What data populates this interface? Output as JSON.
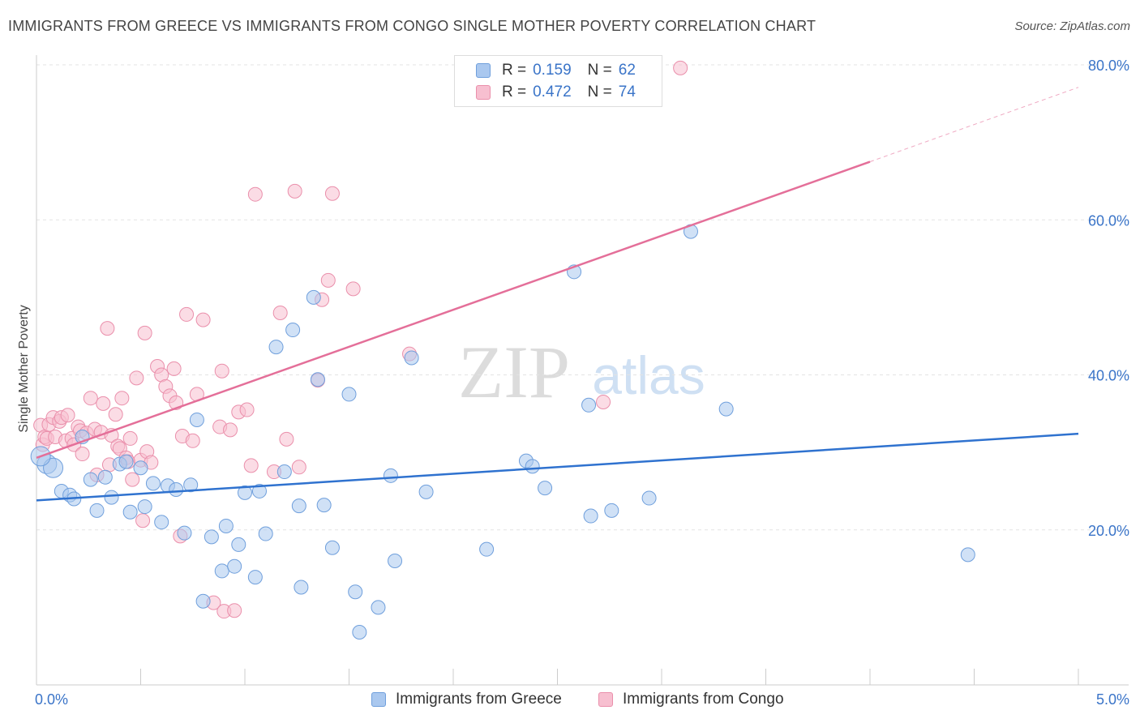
{
  "title": "IMMIGRANTS FROM GREECE VS IMMIGRANTS FROM CONGO SINGLE MOTHER POVERTY CORRELATION CHART",
  "source": "Source: ZipAtlas.com",
  "watermark": {
    "zip": "ZIP",
    "atlas": "atlas"
  },
  "legend": {
    "greece": {
      "r_label": "R =",
      "r_value": "0.159",
      "n_label": "N =",
      "n_value": "62"
    },
    "congo": {
      "r_label": "R =",
      "r_value": "0.472",
      "n_label": "N =",
      "n_value": "74"
    }
  },
  "colors": {
    "greece_fill": "#aac8ef",
    "greece_stroke": "#6f9fdc",
    "greece_line": "#2f72cf",
    "congo_fill": "#f7bfd0",
    "congo_stroke": "#ea8fab",
    "congo_line": "#e46f99",
    "tick_text": "#3a74c8"
  },
  "chart_data": {
    "type": "scatter",
    "title": "IMMIGRANTS FROM GREECE VS IMMIGRANTS FROM CONGO SINGLE MOTHER POVERTY CORRELATION CHART",
    "xlabel": "",
    "ylabel": "Single Mother Poverty",
    "xlim": [
      0,
      5
    ],
    "ylim": [
      0,
      80
    ],
    "x_tick_labels": [
      "0.0%",
      "5.0%"
    ],
    "y_ticks": [
      20,
      40,
      60,
      80
    ],
    "y_tick_labels": [
      "20.0%",
      "40.0%",
      "60.0%",
      "80.0%"
    ],
    "grid": "horizontal dashed",
    "series": [
      {
        "name": "Immigrants from Greece",
        "r": 0.159,
        "n": 62,
        "trend": {
          "x0": 0.0,
          "y0": 23.8,
          "x1": 5.0,
          "y1": 32.4
        },
        "points": [
          [
            0.05,
            28.5
          ],
          [
            0.08,
            28.0
          ],
          [
            0.02,
            29.5
          ],
          [
            0.12,
            25.0
          ],
          [
            0.16,
            24.5
          ],
          [
            0.18,
            24.0
          ],
          [
            0.22,
            32.0
          ],
          [
            0.26,
            26.5
          ],
          [
            0.29,
            22.5
          ],
          [
            0.33,
            26.8
          ],
          [
            0.36,
            24.2
          ],
          [
            0.4,
            28.5
          ],
          [
            0.43,
            28.8
          ],
          [
            0.45,
            22.3
          ],
          [
            0.5,
            28.0
          ],
          [
            0.52,
            23.0
          ],
          [
            0.56,
            26.0
          ],
          [
            0.6,
            21.0
          ],
          [
            0.63,
            25.7
          ],
          [
            0.67,
            25.2
          ],
          [
            0.71,
            19.6
          ],
          [
            0.74,
            25.8
          ],
          [
            0.77,
            34.2
          ],
          [
            0.8,
            10.8
          ],
          [
            0.84,
            19.1
          ],
          [
            0.89,
            14.7
          ],
          [
            0.91,
            20.5
          ],
          [
            0.95,
            15.3
          ],
          [
            0.97,
            18.1
          ],
          [
            1.0,
            24.8
          ],
          [
            1.05,
            13.9
          ],
          [
            1.07,
            25.0
          ],
          [
            1.1,
            19.5
          ],
          [
            1.15,
            43.6
          ],
          [
            1.19,
            27.5
          ],
          [
            1.23,
            45.8
          ],
          [
            1.26,
            23.1
          ],
          [
            1.27,
            12.6
          ],
          [
            1.33,
            50.0
          ],
          [
            1.35,
            39.4
          ],
          [
            1.38,
            23.2
          ],
          [
            1.42,
            17.7
          ],
          [
            1.5,
            37.5
          ],
          [
            1.53,
            12.0
          ],
          [
            1.55,
            6.8
          ],
          [
            1.64,
            10.0
          ],
          [
            1.7,
            27.0
          ],
          [
            1.72,
            16.0
          ],
          [
            1.8,
            42.2
          ],
          [
            1.87,
            24.9
          ],
          [
            2.16,
            17.5
          ],
          [
            2.35,
            28.9
          ],
          [
            2.38,
            28.2
          ],
          [
            2.44,
            25.4
          ],
          [
            2.58,
            53.3
          ],
          [
            2.65,
            36.1
          ],
          [
            2.66,
            21.8
          ],
          [
            2.76,
            22.5
          ],
          [
            2.94,
            24.1
          ],
          [
            3.14,
            58.5
          ],
          [
            3.31,
            35.6
          ],
          [
            4.47,
            16.8
          ]
        ]
      },
      {
        "name": "Immigrants from Congo",
        "r": 0.472,
        "n": 74,
        "trend": {
          "x0": 0.0,
          "y0": 29.3,
          "x1": 4.0,
          "y1": 67.5
        },
        "trend_extension": {
          "x1": 5.0,
          "y1": 77.1
        },
        "points": [
          [
            0.02,
            33.5
          ],
          [
            0.03,
            31.0
          ],
          [
            0.04,
            32.0
          ],
          [
            0.05,
            31.8
          ],
          [
            0.06,
            33.6
          ],
          [
            0.08,
            34.5
          ],
          [
            0.09,
            32.0
          ],
          [
            0.11,
            34.0
          ],
          [
            0.12,
            34.5
          ],
          [
            0.14,
            31.5
          ],
          [
            0.15,
            34.8
          ],
          [
            0.17,
            31.8
          ],
          [
            0.18,
            31.0
          ],
          [
            0.2,
            33.3
          ],
          [
            0.21,
            32.8
          ],
          [
            0.22,
            29.8
          ],
          [
            0.24,
            32.5
          ],
          [
            0.26,
            37.0
          ],
          [
            0.28,
            33.0
          ],
          [
            0.29,
            27.1
          ],
          [
            0.31,
            32.6
          ],
          [
            0.32,
            36.3
          ],
          [
            0.34,
            46.0
          ],
          [
            0.35,
            28.4
          ],
          [
            0.36,
            32.2
          ],
          [
            0.38,
            34.9
          ],
          [
            0.39,
            30.8
          ],
          [
            0.4,
            30.5
          ],
          [
            0.41,
            37.0
          ],
          [
            0.43,
            29.3
          ],
          [
            0.44,
            28.8
          ],
          [
            0.45,
            31.8
          ],
          [
            0.46,
            26.5
          ],
          [
            0.48,
            39.6
          ],
          [
            0.5,
            29.0
          ],
          [
            0.51,
            21.2
          ],
          [
            0.52,
            45.4
          ],
          [
            0.53,
            30.1
          ],
          [
            0.55,
            28.7
          ],
          [
            0.58,
            41.1
          ],
          [
            0.6,
            40.0
          ],
          [
            0.62,
            38.5
          ],
          [
            0.64,
            37.3
          ],
          [
            0.66,
            40.8
          ],
          [
            0.67,
            36.4
          ],
          [
            0.69,
            19.2
          ],
          [
            0.7,
            32.1
          ],
          [
            0.72,
            47.8
          ],
          [
            0.75,
            31.5
          ],
          [
            0.77,
            37.5
          ],
          [
            0.8,
            47.1
          ],
          [
            0.85,
            10.6
          ],
          [
            0.88,
            33.3
          ],
          [
            0.89,
            40.5
          ],
          [
            0.9,
            9.5
          ],
          [
            0.93,
            32.9
          ],
          [
            0.95,
            9.6
          ],
          [
            0.97,
            35.2
          ],
          [
            1.01,
            35.5
          ],
          [
            1.03,
            28.3
          ],
          [
            1.05,
            63.3
          ],
          [
            1.14,
            27.5
          ],
          [
            1.17,
            48.0
          ],
          [
            1.2,
            31.7
          ],
          [
            1.24,
            63.7
          ],
          [
            1.26,
            28.1
          ],
          [
            1.35,
            39.3
          ],
          [
            1.37,
            49.7
          ],
          [
            1.4,
            52.2
          ],
          [
            1.42,
            63.4
          ],
          [
            1.52,
            51.1
          ],
          [
            1.79,
            42.7
          ],
          [
            2.72,
            36.5
          ],
          [
            3.09,
            79.6
          ]
        ]
      }
    ]
  }
}
